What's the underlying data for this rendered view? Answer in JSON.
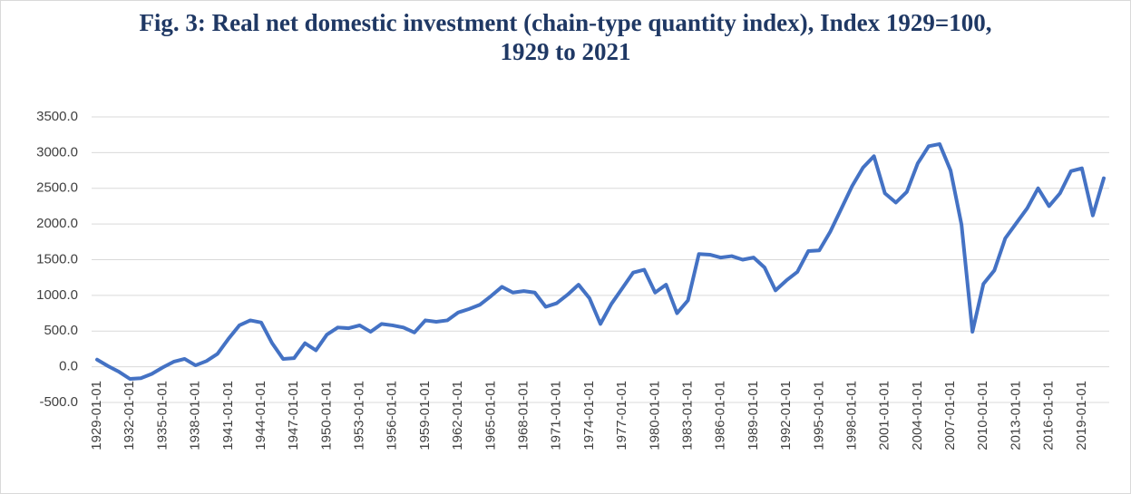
{
  "chart_data": {
    "type": "line",
    "title": "Fig. 3: Real net domestic investment (chain-type quantity index), Index 1929=100, 1929 to 2021",
    "categories": [
      "1929-01-01",
      null,
      null,
      "1932-01-01",
      null,
      null,
      "1935-01-01",
      null,
      null,
      "1938-01-01",
      null,
      null,
      "1941-01-01",
      null,
      null,
      "1944-01-01",
      null,
      null,
      "1947-01-01",
      null,
      null,
      "1950-01-01",
      null,
      null,
      "1953-01-01",
      null,
      null,
      "1956-01-01",
      null,
      null,
      "1959-01-01",
      null,
      null,
      "1962-01-01",
      null,
      null,
      "1965-01-01",
      null,
      null,
      "1968-01-01",
      null,
      null,
      "1971-01-01",
      null,
      null,
      "1974-01-01",
      null,
      null,
      "1977-01-01",
      null,
      null,
      "1980-01-01",
      null,
      null,
      "1983-01-01",
      null,
      null,
      "1986-01-01",
      null,
      null,
      "1989-01-01",
      null,
      null,
      "1992-01-01",
      null,
      null,
      "1995-01-01",
      null,
      null,
      "1998-01-01",
      null,
      null,
      "2001-01-01",
      null,
      null,
      "2004-01-01",
      null,
      null,
      "2007-01-01",
      null,
      null,
      "2010-01-01",
      null,
      null,
      "2013-01-01",
      null,
      null,
      "2016-01-01",
      null,
      null,
      "2019-01-01",
      null,
      null
    ],
    "series": [
      {
        "color": "#4472c4",
        "values": [
          100,
          10,
          -70,
          -170,
          -160,
          -100,
          -10,
          70,
          110,
          20,
          80,
          180,
          390,
          580,
          650,
          620,
          330,
          110,
          120,
          330,
          230,
          450,
          550,
          540,
          580,
          490,
          600,
          580,
          550,
          480,
          650,
          630,
          650,
          760,
          810,
          870,
          990,
          1120,
          1040,
          1060,
          1040,
          840,
          890,
          1010,
          1150,
          960,
          600,
          880,
          1100,
          1320,
          1360,
          1040,
          1150,
          750,
          930,
          1580,
          1570,
          1530,
          1550,
          1500,
          1530,
          1390,
          1070,
          1210,
          1330,
          1620,
          1630,
          1890,
          2210,
          2530,
          2790,
          2950,
          2430,
          2300,
          2450,
          2850,
          3090,
          3120,
          2750,
          1990,
          490,
          1160,
          1350,
          1800,
          2010,
          2220,
          2500,
          2250,
          2430,
          2740,
          2780,
          2120,
          2640
        ]
      }
    ],
    "ylim": [
      -500,
      3500
    ],
    "yticks": [
      {
        "value": -500,
        "label": "-500.0"
      },
      {
        "value": 0,
        "label": "0.0"
      },
      {
        "value": 500,
        "label": "500.0"
      },
      {
        "value": 1000,
        "label": "1000.0"
      },
      {
        "value": 1500,
        "label": "1500.0"
      },
      {
        "value": 2000,
        "label": "2000.0"
      },
      {
        "value": 2500,
        "label": "2500.0"
      },
      {
        "value": 3000,
        "label": "3000.0"
      },
      {
        "value": 3500,
        "label": "3500.0"
      }
    ],
    "grid": true
  }
}
